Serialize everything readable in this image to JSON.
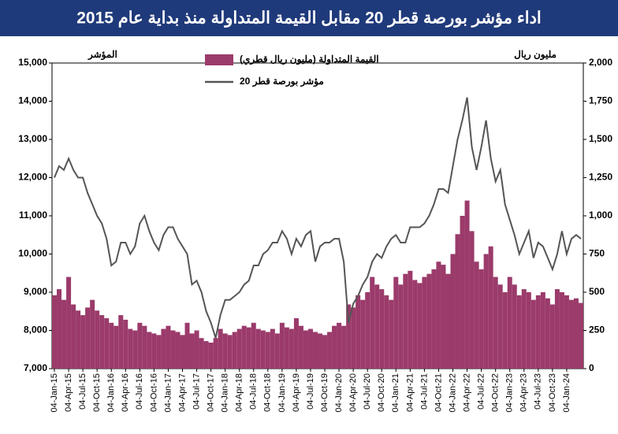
{
  "chart_data": {
    "type": "bar-line",
    "title": "اداء مؤشر بورصة قطر 20 مقابل القيمة المتداولة منذ بداية عام 2015",
    "y_label": "المؤشر",
    "y2_label": "مليون ريال",
    "categories": [
      "04-Jan-15",
      null,
      null,
      "04-Apr-15",
      null,
      null,
      "04-Jul-15",
      null,
      null,
      "04-Oct-15",
      null,
      null,
      "04-Jan-16",
      null,
      null,
      "04-Apr-16",
      null,
      null,
      "04-Jul-16",
      null,
      null,
      "04-Oct-16",
      null,
      null,
      "04-Jan-17",
      null,
      null,
      "04-Apr-17",
      null,
      null,
      "04-Jul-17",
      null,
      null,
      "04-Oct-17",
      null,
      null,
      "04-Jan-18",
      null,
      null,
      "04-Apr-18",
      null,
      null,
      "04-Jul-18",
      null,
      null,
      "04-Oct-18",
      null,
      null,
      "04-Jan-19",
      null,
      null,
      "04-Apr-19",
      null,
      null,
      "04-Jul-19",
      null,
      null,
      "04-Oct-19",
      null,
      null,
      "04-Jan-20",
      null,
      null,
      "04-Apr-20",
      null,
      null,
      "04-Jul-20",
      null,
      null,
      "04-Oct-20",
      null,
      null,
      "04-Jan-21",
      null,
      null,
      "04-Apr-21",
      null,
      null,
      "04-Jul-21",
      null,
      null,
      "04-Oct-21",
      null,
      null,
      "04-Jan-22",
      null,
      null,
      "04-Apr-22",
      null,
      null,
      "04-Jul-22",
      null,
      null,
      "04-Oct-22",
      null,
      null,
      "04-Jan-23",
      null,
      null,
      "04-Apr-23",
      null,
      null,
      "04-Jul-23",
      null,
      null,
      "04-Oct-23",
      null,
      null,
      "04-Jan-24",
      null,
      null,
      null
    ],
    "series": [
      {
        "name": "القيمة المتداولة (مليون ريال قطري)",
        "color": "#9b3b6b",
        "kind": "bar",
        "axis": "y2",
        "values": [
          480,
          520,
          450,
          600,
          420,
          380,
          350,
          400,
          450,
          380,
          350,
          330,
          300,
          280,
          350,
          320,
          260,
          250,
          300,
          280,
          240,
          230,
          220,
          260,
          280,
          250,
          240,
          220,
          300,
          230,
          250,
          200,
          180,
          170,
          200,
          260,
          230,
          220,
          240,
          260,
          280,
          270,
          300,
          260,
          250,
          240,
          260,
          230,
          300,
          270,
          260,
          330,
          280,
          250,
          260,
          240,
          230,
          220,
          240,
          280,
          300,
          280,
          420,
          400,
          480,
          450,
          500,
          600,
          550,
          520,
          480,
          450,
          600,
          550,
          620,
          640,
          580,
          560,
          600,
          620,
          650,
          700,
          680,
          620,
          750,
          880,
          1000,
          1100,
          900,
          700,
          650,
          750,
          800,
          600,
          550,
          500,
          600,
          550,
          480,
          520,
          500,
          450,
          480,
          500,
          460,
          420,
          520,
          500,
          480,
          450,
          460,
          430
        ]
      },
      {
        "name": "مؤشر بورصة قطر 20",
        "color": "#555555",
        "kind": "line",
        "axis": "y",
        "values": [
          12000,
          12300,
          12200,
          12500,
          12200,
          12000,
          12000,
          11600,
          11300,
          11000,
          10800,
          10400,
          9700,
          9800,
          10300,
          10300,
          10000,
          10200,
          10800,
          11000,
          10600,
          10300,
          10100,
          10500,
          10700,
          10700,
          10400,
          10200,
          10000,
          9200,
          9300,
          9000,
          8500,
          8200,
          7800,
          8400,
          8800,
          8800,
          8900,
          9000,
          9200,
          9300,
          9700,
          9700,
          10000,
          10100,
          10300,
          10300,
          10600,
          10400,
          10000,
          10400,
          10200,
          10500,
          10600,
          9800,
          10200,
          10300,
          10300,
          10400,
          10400,
          9800,
          8200,
          8700,
          8900,
          9200,
          9400,
          9800,
          10000,
          9900,
          10200,
          10400,
          10500,
          10300,
          10300,
          10700,
          10700,
          10700,
          10800,
          11000,
          11300,
          11700,
          11700,
          11600,
          12300,
          13000,
          13500,
          14100,
          12800,
          12200,
          12800,
          13500,
          12500,
          11900,
          12200,
          11300,
          10900,
          10500,
          10000,
          10300,
          10600,
          9900,
          10300,
          10200,
          9900,
          9600,
          10000,
          10600,
          10000,
          10400,
          10500,
          10400
        ]
      }
    ],
    "ylim": [
      7000,
      15000
    ],
    "yticks": [
      {
        "value": 7000,
        "label": "7,000"
      },
      {
        "value": 8000,
        "label": "8,000"
      },
      {
        "value": 9000,
        "label": "9,000"
      },
      {
        "value": 10000,
        "label": "10,000"
      },
      {
        "value": 11000,
        "label": "11,000"
      },
      {
        "value": 12000,
        "label": "12,000"
      },
      {
        "value": 13000,
        "label": "13,000"
      },
      {
        "value": 14000,
        "label": "14,000"
      },
      {
        "value": 15000,
        "label": "15,000"
      }
    ],
    "y2lim": [
      0,
      2000
    ],
    "y2ticks": [
      0,
      250,
      500,
      750,
      {
        "value": 1000,
        "label": "1,000"
      },
      {
        "value": 1250,
        "label": "1,250"
      },
      {
        "value": 1500,
        "label": "1,500"
      },
      {
        "value": 1750,
        "label": "1,750"
      },
      {
        "value": 2000,
        "label": "2,000"
      }
    ],
    "title_bg": "#1f3a7a"
  }
}
